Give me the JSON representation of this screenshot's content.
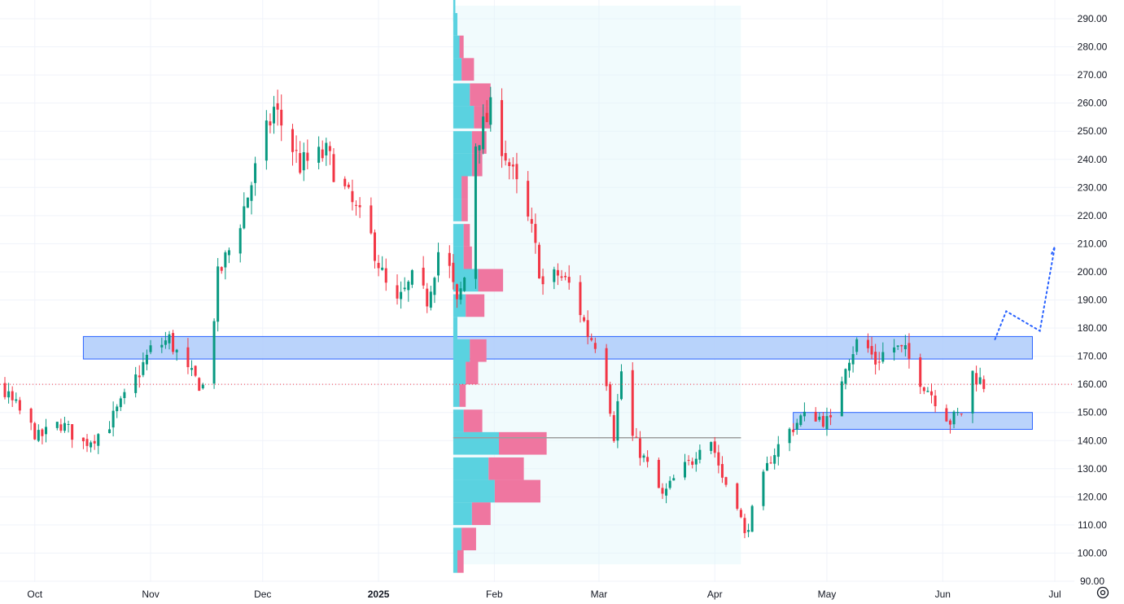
{
  "chart_data": {
    "type": "candlestick",
    "ylim": [
      90,
      295
    ],
    "y_ticks": [
      "290.00",
      "280.00",
      "270.00",
      "260.00",
      "250.00",
      "240.00",
      "230.00",
      "220.00",
      "210.00",
      "200.00",
      "190.00",
      "180.00",
      "170.00",
      "160.00",
      "150.00",
      "140.00",
      "130.00",
      "120.00",
      "110.00",
      "100.00",
      "90.00"
    ],
    "x_ticks": [
      {
        "label": "Oct",
        "date": "2024-10-01"
      },
      {
        "label": "Nov",
        "date": "2024-11-01"
      },
      {
        "label": "Dec",
        "date": "2024-12-01"
      },
      {
        "label": "2025",
        "date": "2025-01-01",
        "bold": true
      },
      {
        "label": "Feb",
        "date": "2025-02-01"
      },
      {
        "label": "Mar",
        "date": "2025-03-01"
      },
      {
        "label": "Apr",
        "date": "2025-04-01"
      },
      {
        "label": "May",
        "date": "2025-05-01"
      },
      {
        "label": "Jun",
        "date": "2025-06-01"
      },
      {
        "label": "Jul",
        "date": "2025-07-01"
      }
    ],
    "x_range": [
      "2024-09-01",
      "2025-07-01"
    ],
    "last_price": 160,
    "colors": {
      "up": "#089981",
      "down": "#f23645",
      "grid": "#f0f3fa",
      "zone_fill": "#aecbfa",
      "zone_border": "#2962ff",
      "profile_up": "#5ad2e0",
      "profile_down": "#ef76a0",
      "profile_bg": "#e0f7fa",
      "projection": "#2962ff",
      "price_line": "#f23645",
      "poc": "#9e9e9e"
    },
    "price_path": [
      [
        "2024-09-01",
        140
      ],
      [
        "2024-09-08",
        148
      ],
      [
        "2024-09-15",
        156
      ],
      [
        "2024-09-20",
        161
      ],
      [
        "2024-09-26",
        152
      ],
      [
        "2024-10-02",
        141
      ],
      [
        "2024-10-08",
        146
      ],
      [
        "2024-10-14",
        139
      ],
      [
        "2024-10-20",
        144
      ],
      [
        "2024-10-26",
        157
      ],
      [
        "2024-11-01",
        172
      ],
      [
        "2024-11-06",
        176
      ],
      [
        "2024-11-11",
        164
      ],
      [
        "2024-11-16",
        158
      ],
      [
        "2024-11-19",
        198
      ],
      [
        "2024-11-24",
        214
      ],
      [
        "2024-11-29",
        236
      ],
      [
        "2024-12-04",
        258
      ],
      [
        "2024-12-07",
        250
      ],
      [
        "2024-12-11",
        238
      ],
      [
        "2024-12-18",
        242
      ],
      [
        "2024-12-24",
        226
      ],
      [
        "2024-12-30",
        212
      ],
      [
        "2025-01-05",
        186
      ],
      [
        "2025-01-10",
        197
      ],
      [
        "2025-01-14",
        190
      ],
      [
        "2025-01-18",
        213
      ],
      [
        "2025-01-22",
        188
      ],
      [
        "2025-01-24",
        198
      ],
      [
        "2025-01-27",
        246
      ],
      [
        "2025-01-31",
        257
      ],
      [
        "2025-02-04",
        242
      ],
      [
        "2025-02-07",
        230
      ],
      [
        "2025-02-11",
        214
      ],
      [
        "2025-02-14",
        195
      ],
      [
        "2025-02-18",
        199
      ],
      [
        "2025-02-22",
        194
      ],
      [
        "2025-02-26",
        178
      ],
      [
        "2025-03-02",
        172
      ],
      [
        "2025-03-05",
        142
      ],
      [
        "2025-03-08",
        176
      ],
      [
        "2025-03-10",
        141
      ],
      [
        "2025-03-14",
        131
      ],
      [
        "2025-03-18",
        120
      ],
      [
        "2025-03-22",
        128
      ],
      [
        "2025-03-26",
        133
      ],
      [
        "2025-03-30",
        145
      ],
      [
        "2025-04-03",
        127
      ],
      [
        "2025-04-07",
        118
      ],
      [
        "2025-04-09",
        106
      ],
      [
        "2025-04-12",
        119
      ],
      [
        "2025-04-16",
        134
      ],
      [
        "2025-04-20",
        142
      ],
      [
        "2025-04-24",
        148
      ],
      [
        "2025-04-28",
        149
      ],
      [
        "2025-05-02",
        146
      ],
      [
        "2025-05-06",
        168
      ],
      [
        "2025-05-10",
        177
      ],
      [
        "2025-05-14",
        168
      ],
      [
        "2025-05-18",
        174
      ],
      [
        "2025-05-22",
        171
      ],
      [
        "2025-05-26",
        162
      ],
      [
        "2025-05-30",
        155
      ],
      [
        "2025-06-03",
        147
      ],
      [
        "2025-06-06",
        150
      ],
      [
        "2025-06-09",
        164
      ],
      [
        "2025-06-12",
        160
      ]
    ],
    "zones": [
      {
        "from": "2024-10-14",
        "to": "2025-06-25",
        "low": 169,
        "high": 177
      },
      {
        "from": "2025-04-22",
        "to": "2025-06-25",
        "low": 144,
        "high": 150
      }
    ],
    "projection": [
      [
        "2025-06-15",
        176
      ],
      [
        "2025-06-18",
        186
      ],
      [
        "2025-06-27",
        179
      ],
      [
        "2025-06-31",
        209
      ],
      [
        "2025-07-00",
        206
      ]
    ],
    "volume_profile": {
      "from": "2025-01-21",
      "to": "2025-04-08",
      "poc": 141,
      "rows": [
        {
          "price": 293,
          "up": 1,
          "down": 0
        },
        {
          "price": 288,
          "up": 2,
          "down": 0
        },
        {
          "price": 280,
          "up": 3,
          "down": 2
        },
        {
          "price": 272,
          "up": 4,
          "down": 6
        },
        {
          "price": 263,
          "up": 8,
          "down": 10
        },
        {
          "price": 255,
          "up": 10,
          "down": 8
        },
        {
          "price": 246,
          "up": 9,
          "down": 7
        },
        {
          "price": 238,
          "up": 9,
          "down": 5
        },
        {
          "price": 230,
          "up": 4,
          "down": 3
        },
        {
          "price": 222,
          "up": 4,
          "down": 3
        },
        {
          "price": 213,
          "up": 5,
          "down": 3
        },
        {
          "price": 205,
          "up": 5,
          "down": 4
        },
        {
          "price": 197,
          "up": 12,
          "down": 12
        },
        {
          "price": 188,
          "up": 6,
          "down": 9
        },
        {
          "price": 180,
          "up": 2,
          "down": 0
        },
        {
          "price": 172,
          "up": 8,
          "down": 8
        },
        {
          "price": 164,
          "up": 6,
          "down": 6
        },
        {
          "price": 156,
          "up": 3,
          "down": 3
        },
        {
          "price": 147,
          "up": 5,
          "down": 9
        },
        {
          "price": 139,
          "up": 22,
          "down": 23
        },
        {
          "price": 130,
          "up": 17,
          "down": 17
        },
        {
          "price": 122,
          "up": 20,
          "down": 22
        },
        {
          "price": 114,
          "up": 9,
          "down": 9
        },
        {
          "price": 105,
          "up": 4,
          "down": 7
        },
        {
          "price": 97,
          "up": 2,
          "down": 3
        }
      ]
    }
  },
  "icons": {
    "settings": "settings-gear-icon"
  }
}
